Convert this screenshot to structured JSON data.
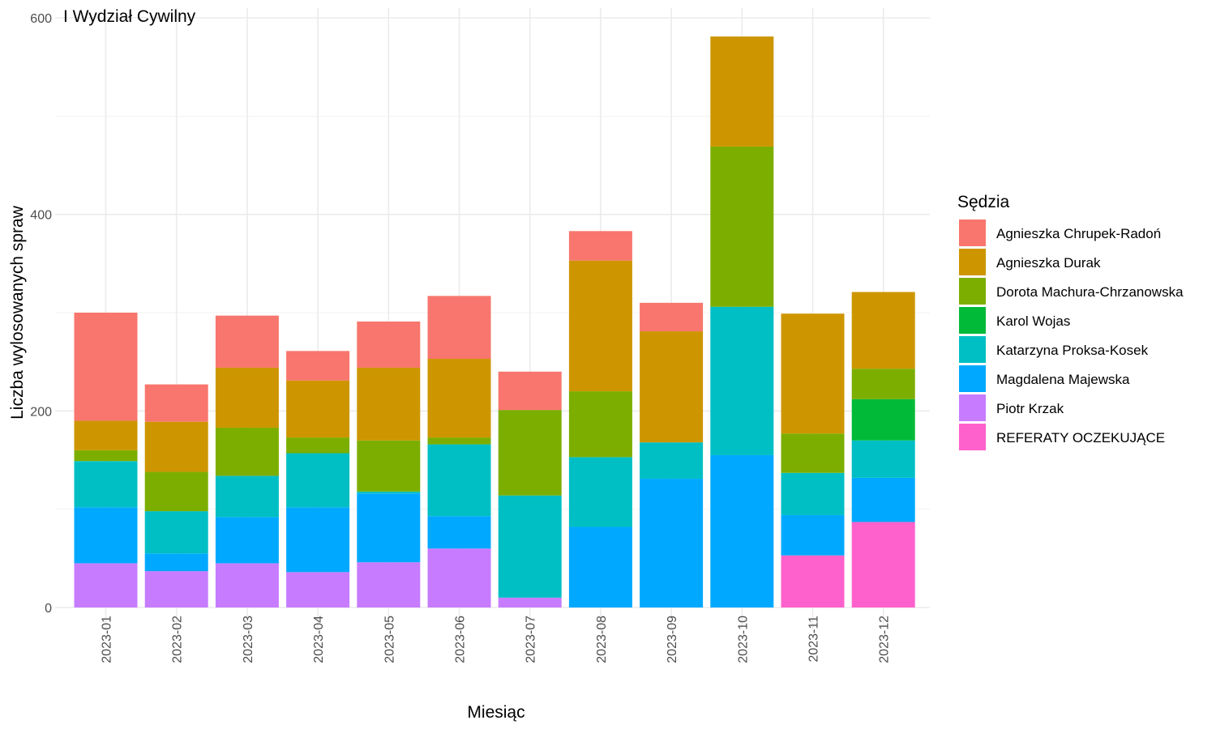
{
  "chart_data": {
    "type": "bar",
    "stacked": true,
    "title": "I Wydział Cywilny",
    "xlabel": "Miesiąc",
    "ylabel": "Liczba wylosowanych spraw",
    "ylim": [
      0,
      600
    ],
    "yticks": [
      0,
      200,
      400,
      600
    ],
    "grid": true,
    "legend_placement": "right",
    "legend_title": "Sędzia",
    "categories": [
      "2023-01",
      "2023-02",
      "2023-03",
      "2023-04",
      "2023-05",
      "2023-06",
      "2023-07",
      "2023-08",
      "2023-09",
      "2023-10",
      "2023-11",
      "2023-12"
    ],
    "series": [
      {
        "name": "Piotr Krzak",
        "color": "#C77CFF",
        "values": [
          45,
          37,
          45,
          36,
          46,
          60,
          10,
          0,
          0,
          0,
          0,
          0
        ]
      },
      {
        "name": "REFERATY OCZEKUJĄCE",
        "color": "#FF61CC",
        "values": [
          0,
          0,
          0,
          0,
          0,
          0,
          0,
          0,
          0,
          0,
          53,
          87
        ]
      },
      {
        "name": "Magdalena Majewska",
        "color": "#00A9FF",
        "values": [
          57,
          18,
          47,
          66,
          70,
          33,
          0,
          82,
          131,
          155,
          41,
          45
        ]
      },
      {
        "name": "Katarzyna Proksa-Kosek",
        "color": "#00BFC4",
        "values": [
          47,
          43,
          42,
          55,
          2,
          73,
          104,
          71,
          37,
          151,
          43,
          38
        ]
      },
      {
        "name": "Karol Wojas",
        "color": "#00BA38",
        "values": [
          0,
          0,
          0,
          0,
          0,
          0,
          0,
          0,
          0,
          0,
          0,
          42
        ]
      },
      {
        "name": "Dorota Machura-Chrzanowska",
        "color": "#7CAE00",
        "values": [
          11,
          40,
          49,
          16,
          52,
          7,
          87,
          67,
          0,
          163,
          40,
          31
        ]
      },
      {
        "name": "Agnieszka Durak",
        "color": "#CD9600",
        "values": [
          30,
          51,
          61,
          58,
          74,
          80,
          0,
          133,
          113,
          112,
          122,
          78
        ]
      },
      {
        "name": "Agnieszka Chrupek-Radoń",
        "color": "#F8766D",
        "values": [
          110,
          38,
          53,
          30,
          47,
          64,
          39,
          30,
          29,
          0,
          0,
          0
        ]
      }
    ],
    "legend_order": [
      "Agnieszka Chrupek-Radoń",
      "Agnieszka Durak",
      "Dorota Machura-Chrzanowska",
      "Karol Wojas",
      "Katarzyna Proksa-Kosek",
      "Magdalena Majewska",
      "Piotr Krzak",
      "REFERATY OCZEKUJĄCE"
    ]
  }
}
